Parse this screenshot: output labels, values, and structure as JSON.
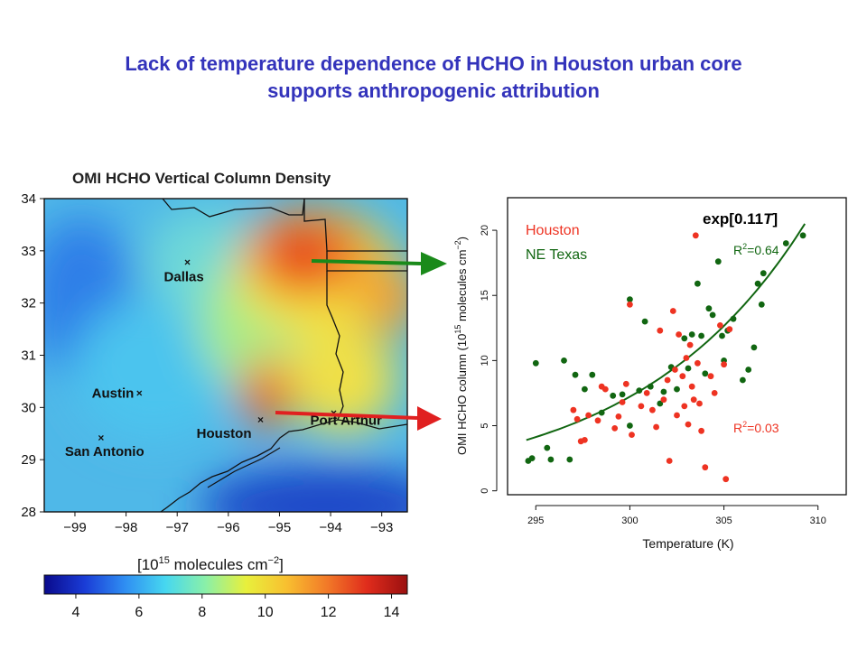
{
  "slide": {
    "title_line1": "Lack of temperature dependence of HCHO in Houston urban core",
    "title_line2": "supports anthropogenic attribution"
  },
  "colors": {
    "title": "#3333bb",
    "houston": "#ee3322",
    "ne_texas": "#116611",
    "arrow_green": "#1a8a1a",
    "arrow_red": "#e02020"
  },
  "chart_data": [
    {
      "type": "heatmap",
      "title": "OMI HCHO Vertical Column Density",
      "x_ticks": [
        "−99",
        "−98",
        "−97",
        "−96",
        "−95",
        "−94",
        "−93"
      ],
      "y_ticks": [
        "34",
        "33",
        "32",
        "31",
        "30",
        "29",
        "28"
      ],
      "xlim": [
        -99.6,
        -92.5
      ],
      "ylim": [
        28,
        34
      ],
      "cities": [
        {
          "name": "Dallas",
          "lon": -96.8,
          "lat": 32.78
        },
        {
          "name": "Austin",
          "lon": -97.74,
          "lat": 30.27
        },
        {
          "name": "San Antonio",
          "lon": -98.49,
          "lat": 29.42
        },
        {
          "name": "Houston",
          "lon": -95.37,
          "lat": 29.76
        },
        {
          "name": "Port Arthur",
          "lon": -93.94,
          "lat": 29.89
        }
      ],
      "colorbar": {
        "label_base": "[10",
        "label_exp": "15",
        "label_rest": " molecules cm",
        "label_exp2": "−2",
        "label_end": "]",
        "ticks": [
          "4",
          "6",
          "8",
          "10",
          "12",
          "14"
        ],
        "range": [
          3,
          14.5
        ],
        "colors": [
          "#0a0a8c",
          "#1a3cd6",
          "#2f8ef2",
          "#46d7f0",
          "#8af0a8",
          "#e8f03c",
          "#f8c030",
          "#f27a28",
          "#e02c1c",
          "#9a1010"
        ]
      }
    },
    {
      "type": "scatter",
      "xlabel": "Temperature (K)",
      "ylabel_main": "OMI HCHO column (10",
      "ylabel_exp": "15",
      "ylabel_rest": " molecules cm",
      "ylabel_exp2": "−2",
      "ylabel_end": ")",
      "xlim": [
        293.5,
        311.5
      ],
      "ylim": [
        -0.3,
        22.5
      ],
      "x_ticks": [
        "295",
        "300",
        "305",
        "310"
      ],
      "y_ticks": [
        "0",
        "5",
        "10",
        "15",
        "20"
      ],
      "fit_label": "exp[0.11T]",
      "fit_label_pre": "exp[0.11",
      "fit_label_var": "T",
      "fit_label_post": "]",
      "fit_curve": {
        "x_start": 294.5,
        "x_end": 309.3,
        "y_start": 3.9,
        "y_end": 20.5
      },
      "legend": [
        "Houston",
        "NE Texas"
      ],
      "series": [
        {
          "name": "Houston",
          "r2_base": "R",
          "r2_exp": "2",
          "r2_value": "=0.03",
          "points": [
            [
              297.0,
              6.2
            ],
            [
              297.2,
              5.5
            ],
            [
              297.4,
              3.8
            ],
            [
              297.6,
              3.9
            ],
            [
              297.8,
              5.8
            ],
            [
              298.3,
              5.4
            ],
            [
              298.5,
              8.0
            ],
            [
              298.7,
              7.8
            ],
            [
              299.2,
              4.8
            ],
            [
              299.4,
              5.7
            ],
            [
              299.6,
              6.8
            ],
            [
              299.8,
              8.2
            ],
            [
              300.0,
              14.3
            ],
            [
              300.1,
              4.3
            ],
            [
              300.6,
              6.5
            ],
            [
              300.9,
              7.5
            ],
            [
              301.2,
              6.2
            ],
            [
              301.4,
              4.9
            ],
            [
              301.6,
              12.3
            ],
            [
              301.8,
              7.0
            ],
            [
              302.0,
              8.5
            ],
            [
              302.1,
              2.3
            ],
            [
              302.3,
              13.8
            ],
            [
              302.4,
              9.3
            ],
            [
              302.5,
              5.8
            ],
            [
              302.6,
              12.0
            ],
            [
              302.8,
              8.8
            ],
            [
              302.9,
              6.5
            ],
            [
              303.0,
              10.2
            ],
            [
              303.1,
              5.1
            ],
            [
              303.2,
              11.2
            ],
            [
              303.3,
              8.0
            ],
            [
              303.4,
              7.0
            ],
            [
              303.5,
              19.6
            ],
            [
              303.6,
              9.8
            ],
            [
              303.7,
              6.7
            ],
            [
              303.8,
              4.6
            ],
            [
              304.0,
              1.8
            ],
            [
              304.3,
              8.8
            ],
            [
              304.5,
              7.5
            ],
            [
              304.8,
              12.7
            ],
            [
              305.0,
              9.7
            ],
            [
              305.1,
              0.9
            ],
            [
              305.3,
              12.4
            ]
          ]
        },
        {
          "name": "NE Texas",
          "r2_base": "R",
          "r2_exp": "2",
          "r2_value": "=0.64",
          "points": [
            [
              294.6,
              2.3
            ],
            [
              294.8,
              2.5
            ],
            [
              295.0,
              9.8
            ],
            [
              295.6,
              3.3
            ],
            [
              295.8,
              2.4
            ],
            [
              296.5,
              10.0
            ],
            [
              296.8,
              2.4
            ],
            [
              297.1,
              8.9
            ],
            [
              297.6,
              7.8
            ],
            [
              298.0,
              8.9
            ],
            [
              298.5,
              6.0
            ],
            [
              299.1,
              7.3
            ],
            [
              299.6,
              7.4
            ],
            [
              300.0,
              14.7
            ],
            [
              300.0,
              5.0
            ],
            [
              300.5,
              7.7
            ],
            [
              300.8,
              13.0
            ],
            [
              301.1,
              8.0
            ],
            [
              301.6,
              6.7
            ],
            [
              301.8,
              7.6
            ],
            [
              302.2,
              9.5
            ],
            [
              302.5,
              7.8
            ],
            [
              302.9,
              11.7
            ],
            [
              303.1,
              9.4
            ],
            [
              303.3,
              12.0
            ],
            [
              303.6,
              15.9
            ],
            [
              303.8,
              11.9
            ],
            [
              304.0,
              9.0
            ],
            [
              304.2,
              14.0
            ],
            [
              304.4,
              13.5
            ],
            [
              304.7,
              17.6
            ],
            [
              304.9,
              11.9
            ],
            [
              305.0,
              10.0
            ],
            [
              305.2,
              12.3
            ],
            [
              305.5,
              13.2
            ],
            [
              306.0,
              8.5
            ],
            [
              306.3,
              9.3
            ],
            [
              306.6,
              11.0
            ],
            [
              306.8,
              15.9
            ],
            [
              307.0,
              14.3
            ],
            [
              307.1,
              16.7
            ],
            [
              308.3,
              19.0
            ],
            [
              309.2,
              19.6
            ]
          ]
        }
      ]
    }
  ]
}
